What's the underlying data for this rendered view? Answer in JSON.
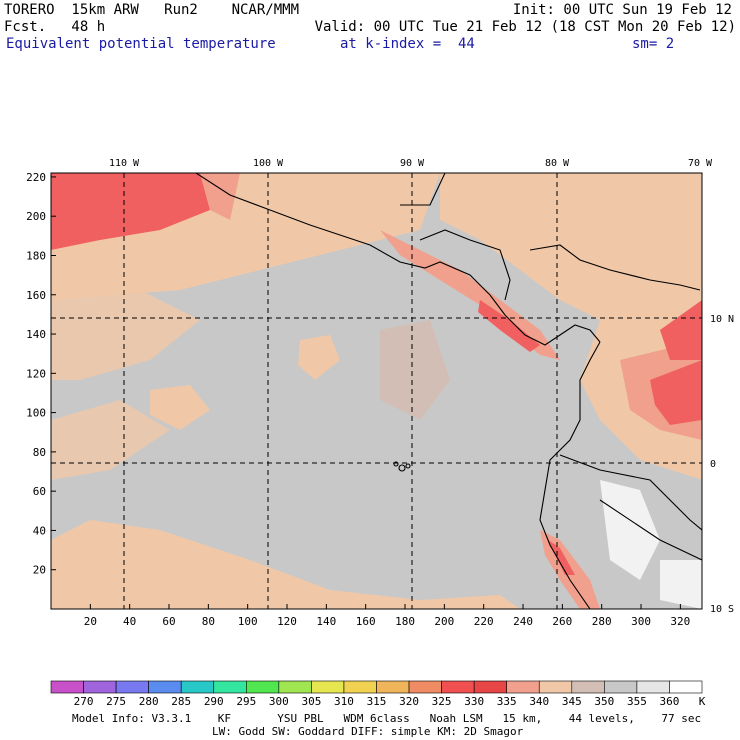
{
  "header": {
    "line1_left": "TORERO  15km ARW   Run2    NCAR/MMM",
    "line1_right": "Init: 00 UTC Sun 19 Feb 12",
    "line2_left": "Fcst.   48 h",
    "line2_right": "Valid: 00 UTC Tue 21 Feb 12 (18 CST Mon 20 Feb 12)",
    "line3_field": "Equivalent potential temperature",
    "line3_level": "at k-index =  44",
    "line3_smooth": "sm= 2"
  },
  "map": {
    "x_ticks": [
      "20",
      "40",
      "60",
      "80",
      "100",
      "120",
      "140",
      "160",
      "180",
      "200",
      "220",
      "240",
      "260",
      "280",
      "300",
      "320"
    ],
    "y_ticks": [
      "20",
      "40",
      "60",
      "80",
      "100",
      "120",
      "140",
      "160",
      "180",
      "200",
      "220"
    ],
    "lon_labels": [
      "110 W",
      "100 W",
      "90 W",
      "80 W",
      "70 W"
    ],
    "lat_labels": [
      "10 N",
      "0",
      "10 S"
    ]
  },
  "colorbar": {
    "labels": [
      "270",
      "275",
      "280",
      "285",
      "290",
      "295",
      "300",
      "305",
      "310",
      "315",
      "320",
      "325",
      "330",
      "335",
      "340",
      "345",
      "350",
      "355",
      "360"
    ],
    "unit": "K",
    "colors": [
      "#c850c8",
      "#a064dc",
      "#7878f0",
      "#5a8cf0",
      "#28c8c8",
      "#32e6a0",
      "#50e650",
      "#a0e650",
      "#e6e650",
      "#f0d250",
      "#f0b45a",
      "#f08c64",
      "#f05050",
      "#e64646",
      "#f0a08c",
      "#f0c8a8",
      "#d2beb4",
      "#c8c8c8",
      "#e6e6e6",
      "#ffffff"
    ]
  },
  "footer": {
    "line1": "Model Info: V3.3.1    KF       YSU PBL   WDM 6class   Noah LSM   15 km,    44 levels,    77 sec",
    "line2": "LW: Godd SW: Goddard DIFF: simple KM: 2D Smagor"
  },
  "colors": {
    "ocean_base": "#c8c8c8",
    "warm_pale": "#f0c8a8",
    "salmon": "#f0a08c",
    "red": "#f06060",
    "white_patch": "#f2f2f2"
  }
}
